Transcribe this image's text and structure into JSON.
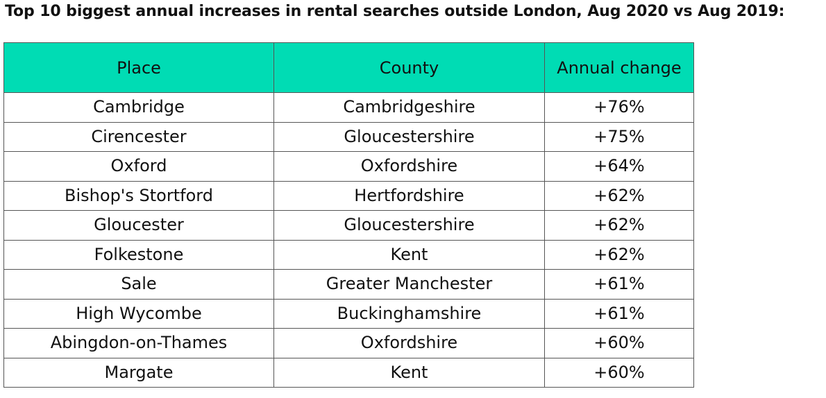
{
  "title": "Top 10 biggest annual increases in rental searches outside London, Aug 2020 vs Aug 2019:",
  "table": {
    "headers": [
      "Place",
      "County",
      "Annual change"
    ],
    "header_color": "#00dcb4",
    "rows": [
      {
        "place": "Cambridge",
        "county": "Cambridgeshire",
        "change": "+76%"
      },
      {
        "place": "Cirencester",
        "county": "Gloucestershire",
        "change": "+75%"
      },
      {
        "place": "Oxford",
        "county": "Oxfordshire",
        "change": "+64%"
      },
      {
        "place": "Bishop's Stortford",
        "county": "Hertfordshire",
        "change": "+62%"
      },
      {
        "place": "Gloucester",
        "county": "Gloucestershire",
        "change": "+62%"
      },
      {
        "place": "Folkestone",
        "county": "Kent",
        "change": "+62%"
      },
      {
        "place": "Sale",
        "county": "Greater Manchester",
        "change": "+61%"
      },
      {
        "place": "High Wycombe",
        "county": "Buckinghamshire",
        "change": "+61%"
      },
      {
        "place": "Abingdon-on-Thames",
        "county": "Oxfordshire",
        "change": "+60%"
      },
      {
        "place": "Margate",
        "county": "Kent",
        "change": "+60%"
      }
    ]
  }
}
